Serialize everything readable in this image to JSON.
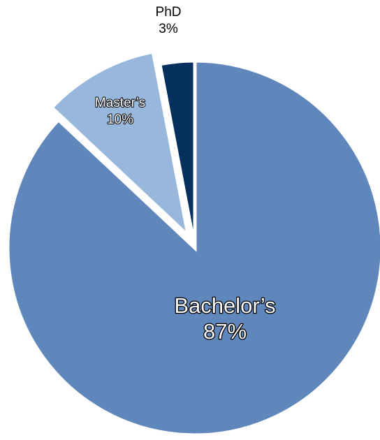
{
  "chart_data": {
    "type": "pie",
    "slices": [
      {
        "label": "Bachelor’s",
        "value": 87,
        "value_label": "87%",
        "color": "#5F87BB"
      },
      {
        "label": "Master’s",
        "value": 10,
        "value_label": "10%",
        "color": "#97B8DC",
        "exploded": true
      },
      {
        "label": "PhD",
        "value": 3,
        "value_label": "3%",
        "color": "#06305E"
      }
    ],
    "title": "",
    "start": "12 o'clock",
    "direction": "clockwise"
  }
}
